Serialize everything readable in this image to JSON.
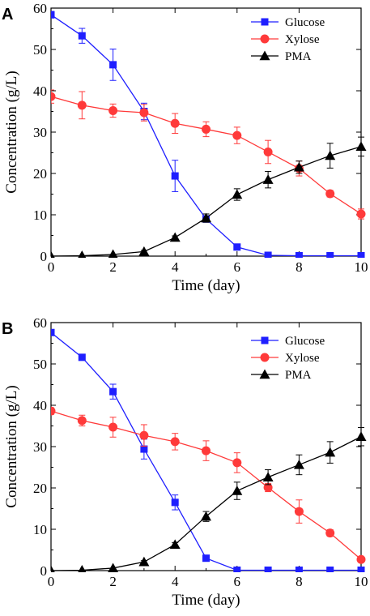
{
  "colors": {
    "glucose": "#1f1fff",
    "xylose": "#ff3a3a",
    "pma": "#000000",
    "axis": "#000000"
  },
  "chart_data": [
    {
      "type": "line",
      "panel_label": "A",
      "xlabel": "Time (day)",
      "ylabel": "Concentration (g/L)",
      "xlim": [
        0,
        10
      ],
      "ylim": [
        0,
        60
      ],
      "x_ticks": [
        0,
        2,
        4,
        6,
        8,
        10
      ],
      "y_ticks": [
        0,
        10,
        20,
        30,
        40,
        50,
        60
      ],
      "grid": false,
      "legend_position": "top-right",
      "series": [
        {
          "name": "Glucose",
          "color": "#1f1fff",
          "marker": "square",
          "x": [
            0,
            1,
            2,
            3,
            4,
            5,
            6,
            7,
            8,
            9,
            10
          ],
          "y": [
            58.4,
            53.3,
            46.3,
            35.0,
            19.4,
            9.0,
            2.2,
            0.2,
            0.1,
            0.1,
            0.1
          ],
          "err": [
            0.8,
            1.8,
            3.8,
            2.0,
            3.8,
            0.8,
            0.5,
            0.2,
            0.2,
            0.2,
            0.2
          ]
        },
        {
          "name": "Xylose",
          "color": "#ff3a3a",
          "marker": "circle",
          "x": [
            0,
            1,
            2,
            3,
            4,
            5,
            6,
            7,
            8,
            9,
            10
          ],
          "y": [
            38.6,
            36.5,
            35.2,
            34.7,
            32.1,
            30.7,
            29.2,
            25.2,
            21.2,
            15.1,
            10.2
          ],
          "err": [
            1.6,
            3.3,
            1.6,
            2.0,
            2.4,
            1.8,
            2.0,
            2.8,
            1.8,
            0.8,
            1.2
          ]
        },
        {
          "name": "PMA",
          "color": "#000000",
          "marker": "triangle",
          "x": [
            0,
            1,
            2,
            3,
            4,
            5,
            6,
            7,
            8,
            9,
            10
          ],
          "y": [
            0.0,
            0.1,
            0.4,
            1.1,
            4.5,
            9.2,
            14.9,
            18.5,
            21.5,
            24.3,
            26.5
          ],
          "err": [
            0.1,
            0.1,
            0.2,
            0.3,
            0.4,
            1.0,
            1.4,
            2.0,
            1.5,
            3.0,
            2.3
          ]
        }
      ]
    },
    {
      "type": "line",
      "panel_label": "B",
      "xlabel": "Time (day)",
      "ylabel": "Concentration (g/L)",
      "xlim": [
        0,
        10
      ],
      "ylim": [
        0,
        60
      ],
      "x_ticks": [
        0,
        2,
        4,
        6,
        8,
        10
      ],
      "y_ticks": [
        0,
        10,
        20,
        30,
        40,
        50,
        60
      ],
      "grid": false,
      "legend_position": "top-right",
      "series": [
        {
          "name": "Glucose",
          "color": "#1f1fff",
          "marker": "square",
          "x": [
            0,
            1,
            2,
            3,
            4,
            5,
            6,
            7,
            8,
            9,
            10
          ],
          "y": [
            57.6,
            51.6,
            43.3,
            29.4,
            16.5,
            3.0,
            0.1,
            0.1,
            0.1,
            0.1,
            0.1
          ],
          "err": [
            0.6,
            0.6,
            1.8,
            2.4,
            1.8,
            0.4,
            0.2,
            0.2,
            0.2,
            0.2,
            0.2
          ]
        },
        {
          "name": "Xylose",
          "color": "#ff3a3a",
          "marker": "circle",
          "x": [
            0,
            1,
            2,
            3,
            4,
            5,
            6,
            7,
            8,
            9,
            10
          ],
          "y": [
            38.6,
            36.3,
            34.7,
            32.7,
            31.2,
            29.0,
            26.1,
            20.1,
            14.3,
            9.1,
            2.7
          ],
          "err": [
            0.8,
            1.3,
            2.4,
            2.6,
            2.0,
            2.4,
            2.4,
            1.0,
            2.8,
            0.8,
            0.5
          ]
        },
        {
          "name": "PMA",
          "color": "#000000",
          "marker": "triangle",
          "x": [
            0,
            1,
            2,
            3,
            4,
            5,
            6,
            7,
            8,
            9,
            10
          ],
          "y": [
            0.0,
            0.1,
            0.6,
            2.1,
            6.3,
            13.1,
            19.3,
            22.6,
            25.6,
            28.6,
            32.4
          ],
          "err": [
            0.1,
            0.1,
            0.2,
            0.3,
            0.5,
            1.2,
            2.1,
            1.8,
            2.4,
            2.6,
            2.2
          ]
        }
      ]
    }
  ]
}
